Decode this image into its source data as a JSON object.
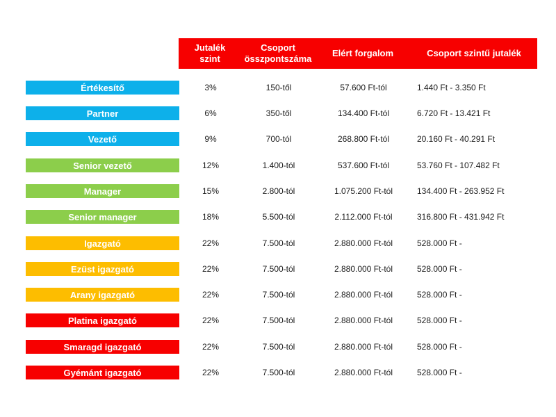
{
  "colors": {
    "header": "#f70000",
    "blue": "#0db0ea",
    "green": "#8cce4b",
    "yellow": "#fdbd00",
    "red": "#f70000"
  },
  "header": {
    "col1": "Jutalék\nszint",
    "col2": "Csoport\nösszpontszáma",
    "col3": "Elért forgalom",
    "col4": "Csoport szintű jutalék"
  },
  "rows": [
    {
      "label": "Értékesítő",
      "color": "#0db0ea",
      "rate": "3%",
      "points": "150-től",
      "turnover": "57.600 Ft-tól",
      "bonus": "1.440 Ft - 3.350 Ft"
    },
    {
      "label": "Partner",
      "color": "#0db0ea",
      "rate": "6%",
      "points": "350-től",
      "turnover": "134.400 Ft-tól",
      "bonus": "6.720 Ft - 13.421 Ft"
    },
    {
      "label": "Vezető",
      "color": "#0db0ea",
      "rate": "9%",
      "points": "700-tól",
      "turnover": "268.800 Ft-tól",
      "bonus": "20.160 Ft - 40.291 Ft"
    },
    {
      "label": "Senior vezető",
      "color": "#8cce4b",
      "rate": "12%",
      "points": "1.400-tól",
      "turnover": "537.600 Ft-tól",
      "bonus": "53.760 Ft - 107.482 Ft"
    },
    {
      "label": "Manager",
      "color": "#8cce4b",
      "rate": "15%",
      "points": "2.800-tól",
      "turnover": "1.075.200 Ft-tól",
      "bonus": "134.400 Ft - 263.952 Ft"
    },
    {
      "label": "Senior manager",
      "color": "#8cce4b",
      "rate": "18%",
      "points": "5.500-tól",
      "turnover": "2.112.000 Ft-tól",
      "bonus": "316.800 Ft - 431.942 Ft"
    },
    {
      "label": "Igazgató",
      "color": "#fdbd00",
      "rate": "22%",
      "points": "7.500-tól",
      "turnover": "2.880.000 Ft-tól",
      "bonus": "528.000 Ft -"
    },
    {
      "label": "Ezüst igazgató",
      "color": "#fdbd00",
      "rate": "22%",
      "points": "7.500-tól",
      "turnover": "2.880.000 Ft-tól",
      "bonus": "528.000 Ft -"
    },
    {
      "label": "Arany igazgató",
      "color": "#fdbd00",
      "rate": "22%",
      "points": "7.500-tól",
      "turnover": "2.880.000 Ft-tól",
      "bonus": "528.000 Ft -"
    },
    {
      "label": "Platina igazgató",
      "color": "#f70000",
      "rate": "22%",
      "points": "7.500-tól",
      "turnover": "2.880.000 Ft-tól",
      "bonus": "528.000 Ft -"
    },
    {
      "label": "Smaragd igazgató",
      "color": "#f70000",
      "rate": "22%",
      "points": "7.500-tól",
      "turnover": "2.880.000 Ft-tól",
      "bonus": "528.000 Ft -"
    },
    {
      "label": "Gyémánt igazgató",
      "color": "#f70000",
      "rate": "22%",
      "points": "7.500-tól",
      "turnover": "2.880.000 Ft-tól",
      "bonus": "528.000 Ft -"
    }
  ]
}
